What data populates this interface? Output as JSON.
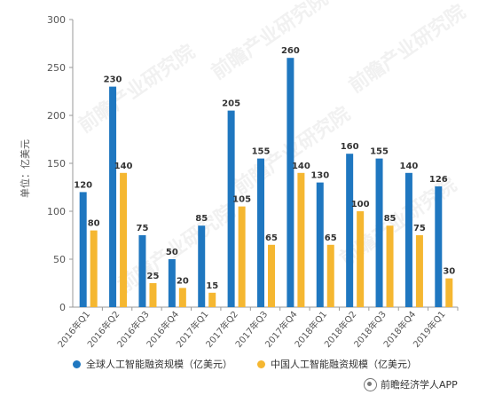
{
  "chart_data": {
    "type": "bar",
    "ylabel": "单位：亿美元",
    "ylim": [
      0,
      300
    ],
    "yticks": [
      0,
      50,
      100,
      150,
      200,
      250,
      300
    ],
    "categories": [
      "2016年Q1",
      "2016年Q2",
      "2016年Q3",
      "2016年Q4",
      "2017年Q1",
      "2017年Q2",
      "2017年Q3",
      "2017年Q4",
      "2018年Q1",
      "2018年Q2",
      "2018年Q3",
      "2018年Q4",
      "2019年Q1"
    ],
    "series": [
      {
        "name": "全球人工智能融资规模（亿美元）",
        "color": "#1f77c0",
        "values": [
          120,
          230,
          75,
          50,
          85,
          205,
          155,
          260,
          130,
          160,
          155,
          140,
          126
        ]
      },
      {
        "name": "中国人工智能融资规模（亿美元）",
        "color": "#f5b731",
        "values": [
          80,
          140,
          25,
          20,
          15,
          105,
          65,
          140,
          65,
          100,
          85,
          75,
          30
        ]
      }
    ],
    "legend_position": "bottom",
    "grid": false
  },
  "source": "前瞻经济学人APP",
  "watermark": "前瞻产业研究院"
}
